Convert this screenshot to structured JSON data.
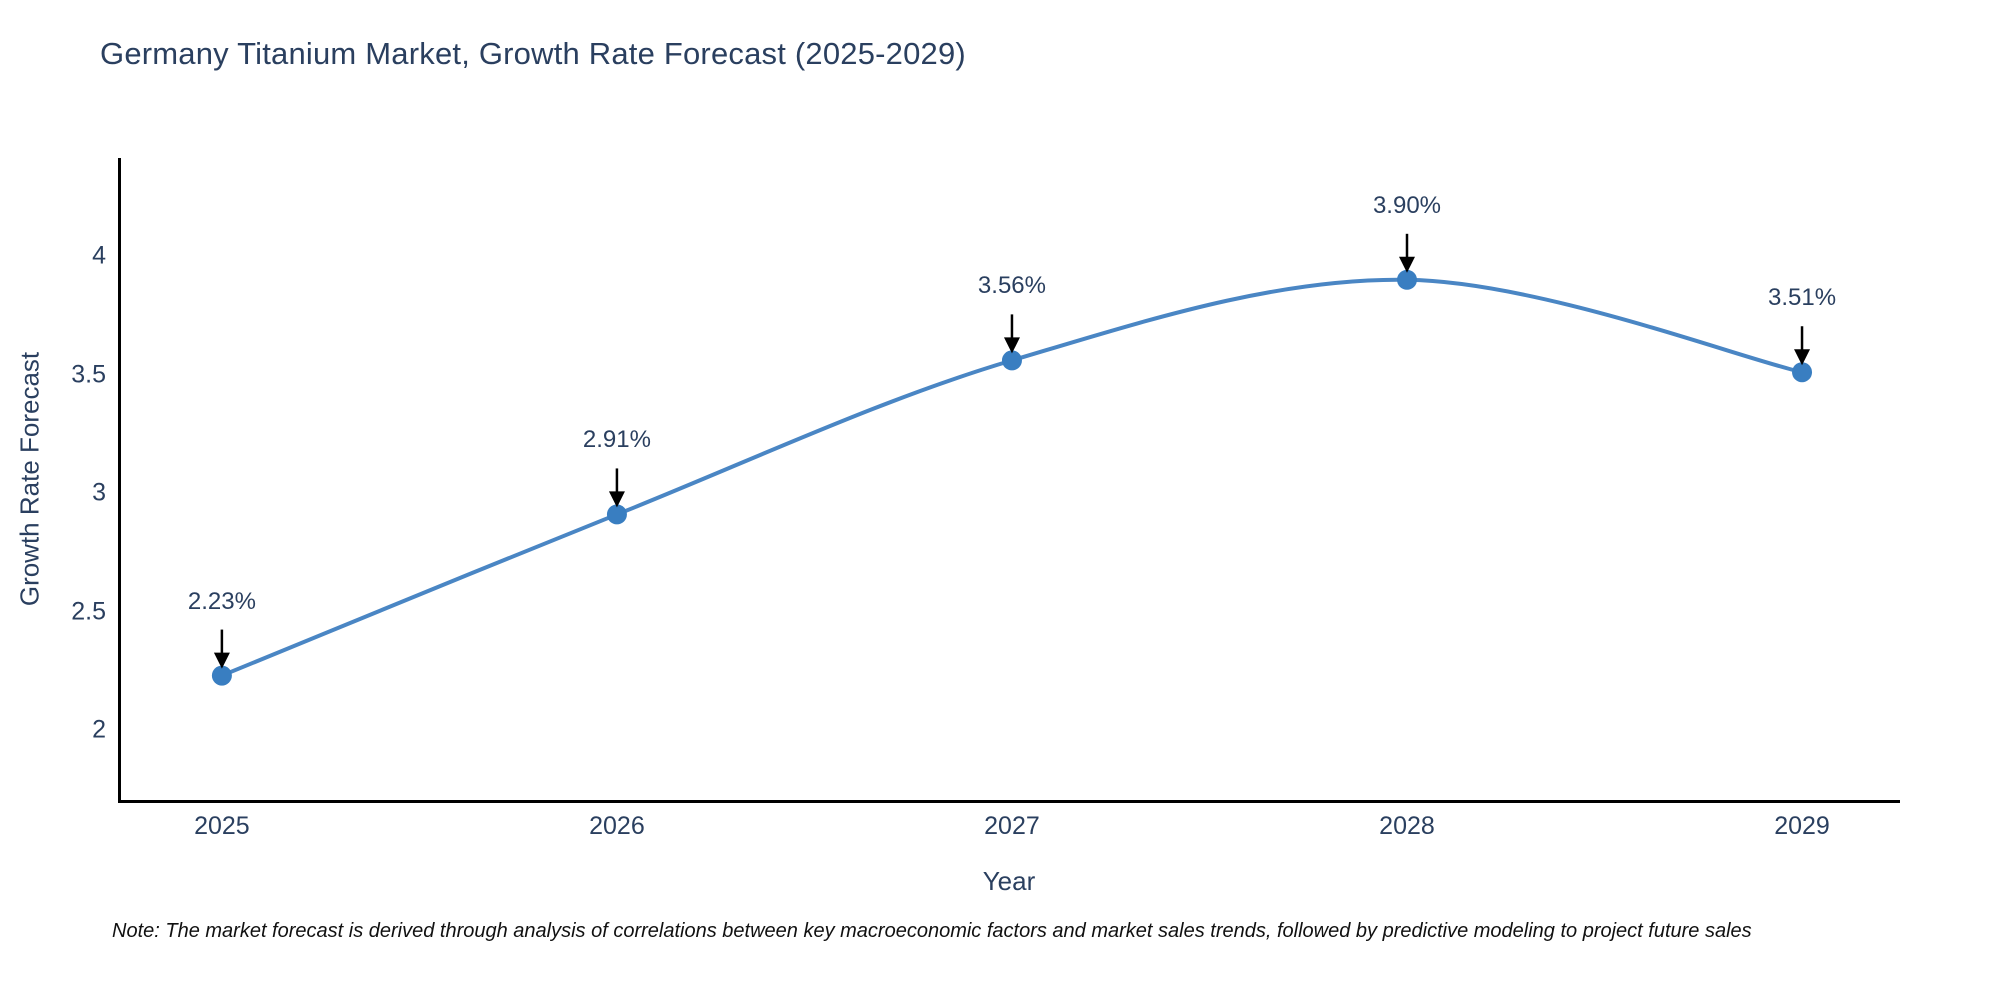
{
  "title": "Germany Titanium Market, Growth Rate Forecast (2025-2029)",
  "footnote": "Note: The market forecast is derived through analysis of correlations between key macroeconomic factors and market sales trends, followed by predictive modeling to project future sales",
  "chart_data": {
    "type": "line",
    "line_shape": "spline",
    "title": "Germany Titanium Market, Growth Rate Forecast (2025-2029)",
    "xlabel": "Year",
    "ylabel": "Growth Rate Forecast",
    "x": [
      2025,
      2026,
      2027,
      2028,
      2029
    ],
    "values": [
      2.23,
      2.91,
      3.56,
      3.9,
      3.51
    ],
    "point_labels": [
      "2.23%",
      "2.91%",
      "3.56%",
      "3.90%",
      "3.51%"
    ],
    "x_tick_labels": [
      "2025",
      "2026",
      "2027",
      "2028",
      "2029"
    ],
    "y_ticks": [
      2,
      2.5,
      3,
      3.5,
      4
    ],
    "y_tick_labels": [
      "2",
      "2.5",
      "3",
      "3.5",
      "4"
    ],
    "xlim": [
      2024.737,
      2029.248
    ],
    "ylim": [
      1.705,
      4.414
    ],
    "grid": false,
    "legend": "none",
    "annotations_have_arrows": true,
    "colors": {
      "line": "#4a86c4",
      "marker": "#397ec1",
      "axis_line": "#000000",
      "tick_text": "#2a3f5f",
      "title_text": "#2a3f5f",
      "annotation_text": "#2a3f5f",
      "arrow": "#000000",
      "note_text": "#111111",
      "background": "#ffffff"
    }
  }
}
